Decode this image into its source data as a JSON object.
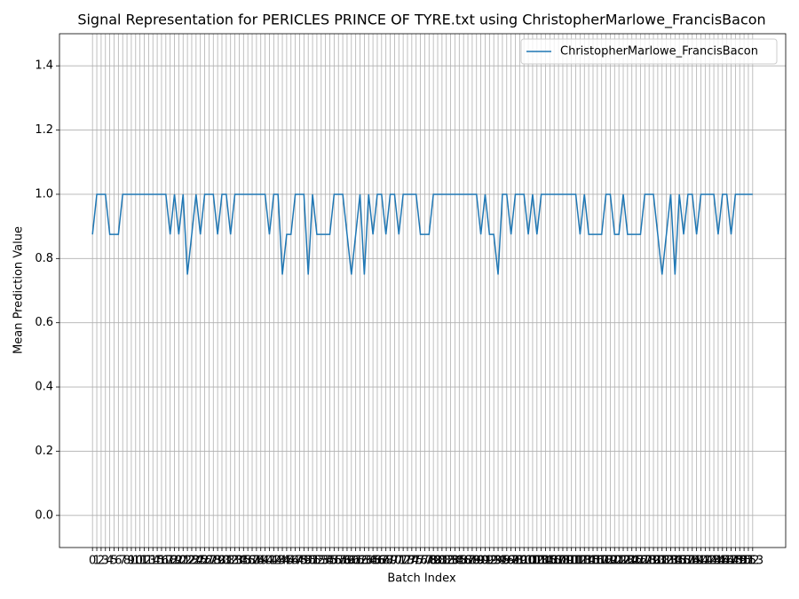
{
  "chart_data": {
    "type": "line",
    "title": "Signal Representation for PERICLES PRINCE OF TYRE.txt using ChristopherMarlowe_FrancisBacon",
    "xlabel": "Batch Index",
    "ylabel": "Mean Prediction Value",
    "x": [
      0,
      1,
      2,
      3,
      4,
      5,
      6,
      7,
      8,
      9,
      10,
      11,
      12,
      13,
      14,
      15,
      16,
      17,
      18,
      19,
      20,
      21,
      22,
      23,
      24,
      25,
      26,
      27,
      28,
      29,
      30,
      31,
      32,
      33,
      34,
      35,
      36,
      37,
      38,
      39,
      40,
      41,
      42,
      43,
      44,
      45,
      46,
      47,
      48,
      49,
      50,
      51,
      52,
      53,
      54,
      55,
      56,
      57,
      58,
      59,
      60,
      61,
      62,
      63,
      64,
      65,
      66,
      67,
      68,
      69,
      70,
      71,
      72,
      73,
      74,
      75,
      76,
      77,
      78,
      79,
      80,
      81,
      82,
      83,
      84,
      85,
      86,
      87,
      88,
      89,
      90,
      91,
      92,
      93,
      94,
      95,
      96,
      97,
      98,
      99,
      100,
      101,
      102,
      103,
      104,
      105,
      106,
      107,
      108,
      109,
      110,
      111,
      112,
      113,
      114,
      115,
      116,
      117,
      118,
      119,
      120,
      121,
      122,
      123,
      124,
      125,
      126,
      127,
      128,
      129,
      130,
      131,
      132,
      133,
      134,
      135,
      136,
      137,
      138,
      139,
      140,
      141,
      142,
      143,
      144,
      145,
      146,
      147,
      148,
      149,
      150,
      151,
      152,
      153
    ],
    "series": [
      {
        "name": "ChristopherMarlowe_FrancisBacon",
        "color": "#1f77b4",
        "values": [
          0.875,
          1,
          1,
          1,
          0.875,
          0.875,
          0.875,
          1,
          1,
          1,
          1,
          1,
          1,
          1,
          1,
          1,
          1,
          1,
          0.875,
          1,
          0.875,
          1,
          0.75,
          0.875,
          1,
          0.875,
          1,
          1,
          1,
          0.875,
          1,
          1,
          0.875,
          1,
          1,
          1,
          1,
          1,
          1,
          1,
          1,
          0.875,
          1,
          1,
          0.75,
          0.875,
          0.875,
          1,
          1,
          1,
          0.75,
          1,
          0.875,
          0.875,
          0.875,
          0.875,
          1,
          1,
          1,
          0.875,
          0.75,
          0.875,
          1,
          0.75,
          1,
          0.875,
          1,
          1,
          0.875,
          1,
          1,
          0.875,
          1,
          1,
          1,
          1,
          0.875,
          0.875,
          0.875,
          1,
          1,
          1,
          1,
          1,
          1,
          1,
          1,
          1,
          1,
          1,
          0.875,
          1,
          0.875,
          0.875,
          0.75,
          1,
          1,
          0.875,
          1,
          1,
          1,
          0.875,
          1,
          0.875,
          1,
          1,
          1,
          1,
          1,
          1,
          1,
          1,
          1,
          0.875,
          1,
          0.875,
          0.875,
          0.875,
          0.875,
          1,
          1,
          0.875,
          0.875,
          1,
          0.875,
          0.875,
          0.875,
          0.875,
          1,
          1,
          1,
          0.875,
          0.75,
          0.875,
          1,
          0.75,
          1,
          0.875,
          1,
          1,
          0.875,
          1,
          1,
          1,
          1,
          0.875,
          1,
          1,
          0.875,
          1,
          1,
          1,
          1,
          1
        ]
      }
    ],
    "xlim": [
      -7.65,
      160.65
    ],
    "xticks": [
      0,
      1,
      2,
      3,
      4,
      5,
      6,
      7,
      8,
      9,
      10,
      11,
      12,
      13,
      14,
      15,
      16,
      17,
      18,
      19,
      20,
      21,
      22,
      23,
      24,
      25,
      26,
      27,
      28,
      29,
      30,
      31,
      32,
      33,
      34,
      35,
      36,
      37,
      38,
      39,
      40,
      41,
      42,
      43,
      44,
      45,
      46,
      47,
      48,
      49,
      50,
      51,
      52,
      53,
      54,
      55,
      56,
      57,
      58,
      59,
      60,
      61,
      62,
      63,
      64,
      65,
      66,
      67,
      68,
      69,
      70,
      71,
      72,
      73,
      74,
      75,
      76,
      77,
      78,
      79,
      80,
      81,
      82,
      83,
      84,
      85,
      86,
      87,
      88,
      89,
      90,
      91,
      92,
      93,
      94,
      95,
      96,
      97,
      98,
      99,
      100,
      101,
      102,
      103,
      104,
      105,
      106,
      107,
      108,
      109,
      110,
      111,
      112,
      113,
      114,
      115,
      116,
      117,
      118,
      119,
      120,
      121,
      122,
      123,
      124,
      125,
      126,
      127,
      128,
      129,
      130,
      131,
      132,
      133,
      134,
      135,
      136,
      137,
      138,
      139,
      140,
      141,
      142,
      143,
      144,
      145,
      146,
      147,
      148,
      149,
      150,
      151,
      152,
      153
    ],
    "ylim": [
      -0.1,
      1.5
    ],
    "yticks": [
      {
        "value": 0,
        "label": "0.0"
      },
      0.2,
      0.4,
      0.6,
      0.8,
      {
        "value": 1,
        "label": "1.0"
      },
      1.2,
      1.4
    ],
    "grid": true,
    "legend": "upper right"
  }
}
